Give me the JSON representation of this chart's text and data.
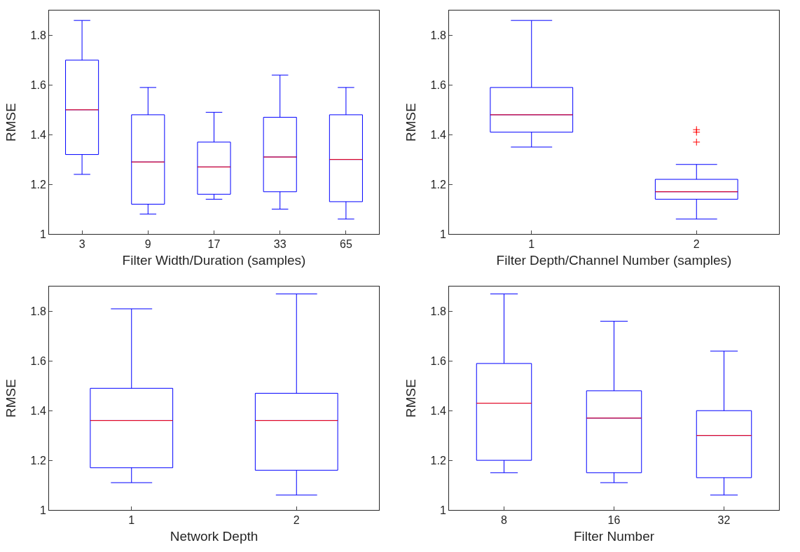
{
  "chart_data": [
    {
      "type": "box",
      "xlabel": "Filter Width/Duration (samples)",
      "ylabel": "RMSE",
      "categories": [
        "3",
        "9",
        "17",
        "33",
        "65"
      ],
      "ylim": [
        1,
        1.9
      ],
      "yticks": [
        1,
        1.2,
        1.4,
        1.6,
        1.8
      ],
      "grid": false,
      "color": "#0000ff",
      "boxes": [
        {
          "low": 1.24,
          "q1": 1.32,
          "median": 1.5,
          "q3": 1.7,
          "high": 1.86
        },
        {
          "low": 1.08,
          "q1": 1.12,
          "median": 1.29,
          "q3": 1.48,
          "high": 1.59
        },
        {
          "low": 1.14,
          "q1": 1.16,
          "median": 1.27,
          "q3": 1.37,
          "high": 1.49
        },
        {
          "low": 1.1,
          "q1": 1.17,
          "median": 1.31,
          "q3": 1.47,
          "high": 1.64
        },
        {
          "low": 1.06,
          "q1": 1.13,
          "median": 1.3,
          "q3": 1.48,
          "high": 1.59
        }
      ]
    },
    {
      "type": "box",
      "xlabel": "Filter Depth/Channel Number (samples)",
      "ylabel": "RMSE",
      "categories": [
        "1",
        "2"
      ],
      "ylim": [
        1,
        1.9
      ],
      "yticks": [
        1,
        1.2,
        1.4,
        1.6,
        1.8
      ],
      "grid": false,
      "color": "#0000ff",
      "boxes": [
        {
          "low": 1.35,
          "q1": 1.41,
          "median": 1.48,
          "q3": 1.59,
          "high": 1.86
        },
        {
          "low": 1.06,
          "q1": 1.14,
          "median": 1.17,
          "q3": 1.22,
          "high": 1.28,
          "outliers": [
            1.42,
            1.41,
            1.37
          ]
        }
      ]
    },
    {
      "type": "box",
      "xlabel": "Network Depth",
      "ylabel": "RMSE",
      "categories": [
        "1",
        "2"
      ],
      "ylim": [
        1,
        1.9
      ],
      "yticks": [
        1,
        1.2,
        1.4,
        1.6,
        1.8
      ],
      "grid": false,
      "color": "#0000ff",
      "boxes": [
        {
          "low": 1.11,
          "q1": 1.17,
          "median": 1.36,
          "q3": 1.49,
          "high": 1.81
        },
        {
          "low": 1.06,
          "q1": 1.16,
          "median": 1.36,
          "q3": 1.47,
          "high": 1.87
        }
      ]
    },
    {
      "type": "box",
      "xlabel": "Filter Number",
      "ylabel": "RMSE",
      "categories": [
        "8",
        "16",
        "32"
      ],
      "ylim": [
        1,
        1.9
      ],
      "yticks": [
        1,
        1.2,
        1.4,
        1.6,
        1.8
      ],
      "grid": false,
      "color": "#0000ff",
      "boxes": [
        {
          "low": 1.15,
          "q1": 1.2,
          "median": 1.43,
          "q3": 1.59,
          "high": 1.87
        },
        {
          "low": 1.11,
          "q1": 1.15,
          "median": 1.37,
          "q3": 1.48,
          "high": 1.76
        },
        {
          "low": 1.06,
          "q1": 1.13,
          "median": 1.3,
          "q3": 1.4,
          "high": 1.64
        }
      ]
    }
  ]
}
